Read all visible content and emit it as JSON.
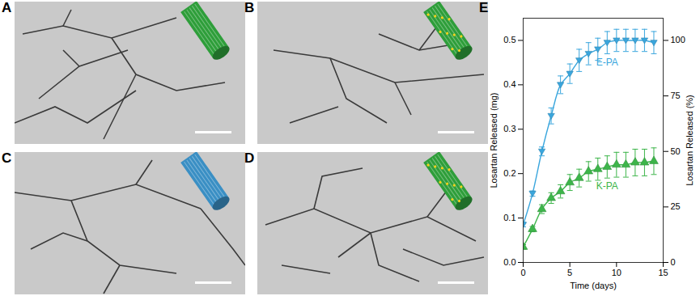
{
  "image_panels": [
    {
      "label": "A"
    },
    {
      "label": "B"
    },
    {
      "label": "C"
    },
    {
      "label": "D"
    }
  ],
  "chart_data": {
    "type": "line",
    "panel_label": "E",
    "x_label": "Time (days)",
    "y_label": "Losartan Released (mg)",
    "y2_label": "Losartan Released (%)",
    "xlim": [
      0,
      15
    ],
    "xticks": [
      0,
      5,
      10,
      15
    ],
    "ylim": [
      0,
      0.55
    ],
    "yticks": [
      {
        "value": 0,
        "label": "0.0"
      },
      {
        "value": 0.1,
        "label": "0.1"
      },
      {
        "value": 0.2,
        "label": "0.2"
      },
      {
        "value": 0.3,
        "label": "0.3"
      },
      {
        "value": 0.4,
        "label": "0.4"
      },
      {
        "value": 0.5,
        "label": "0.5"
      }
    ],
    "y2lim": [
      0,
      110
    ],
    "y2ticks": [
      0,
      25,
      50,
      75,
      100
    ],
    "x": [
      0,
      1,
      2,
      3,
      4,
      5,
      6,
      7,
      8,
      9,
      10,
      11,
      12,
      13,
      14
    ],
    "series": [
      {
        "name": "E-PA",
        "color": "#3aa6dd",
        "marker": "triangle-down",
        "line_style": "solid",
        "values": [
          0.085,
          0.155,
          0.25,
          0.33,
          0.4,
          0.425,
          0.455,
          0.47,
          0.48,
          0.495,
          0.5,
          0.5,
          0.5,
          0.5,
          0.495
        ],
        "errors": [
          0.005,
          0.006,
          0.01,
          0.018,
          0.02,
          0.022,
          0.025,
          0.025,
          0.025,
          0.025,
          0.025,
          0.025,
          0.025,
          0.025,
          0.025
        ]
      },
      {
        "name": "K-PA",
        "color": "#3db54a",
        "marker": "triangle",
        "line_style": "solid",
        "values": [
          0.035,
          0.075,
          0.12,
          0.145,
          0.16,
          0.18,
          0.19,
          0.205,
          0.21,
          0.215,
          0.22,
          0.22,
          0.225,
          0.225,
          0.228
        ],
        "errors": [
          0.005,
          0.006,
          0.01,
          0.012,
          0.015,
          0.018,
          0.02,
          0.022,
          0.025,
          0.025,
          0.028,
          0.028,
          0.03,
          0.03,
          0.03
        ]
      }
    ]
  }
}
